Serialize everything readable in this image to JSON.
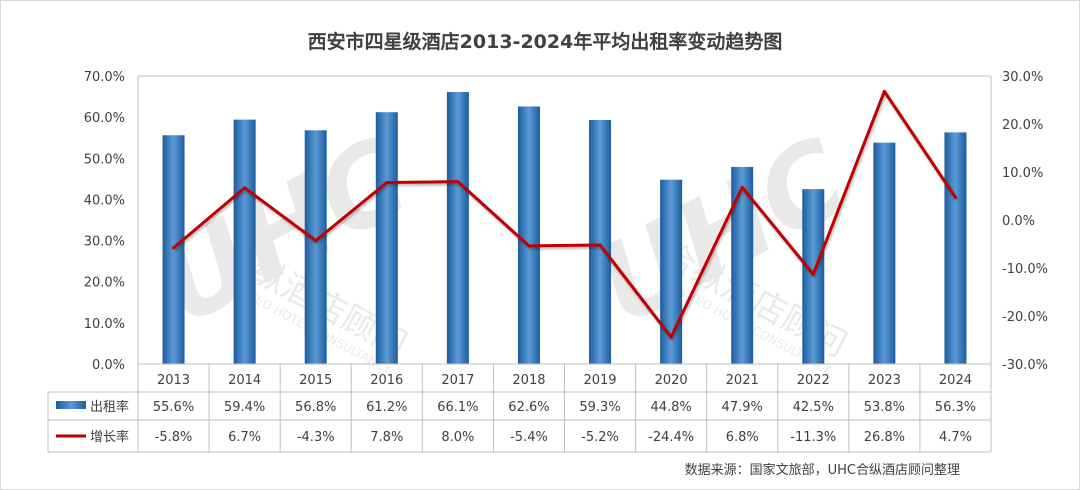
{
  "chart_data": {
    "type": "bar",
    "title": "西安市四星级酒店2013-2024年平均出租率变动趋势图",
    "categories": [
      "2013",
      "2014",
      "2015",
      "2016",
      "2017",
      "2018",
      "2019",
      "2020",
      "2021",
      "2022",
      "2023",
      "2024"
    ],
    "series": [
      {
        "name": "出租率",
        "type": "bar",
        "axis": "left",
        "values": [
          55.6,
          59.4,
          56.8,
          61.2,
          66.1,
          62.6,
          59.3,
          44.8,
          47.9,
          42.5,
          53.8,
          56.3
        ],
        "labels": [
          "55.6%",
          "59.4%",
          "56.8%",
          "61.2%",
          "66.1%",
          "62.6%",
          "59.3%",
          "44.8%",
          "47.9%",
          "42.5%",
          "53.8%",
          "56.3%"
        ],
        "color": "#2E75B6"
      },
      {
        "name": "增长率",
        "type": "line",
        "axis": "right",
        "values": [
          -5.8,
          6.7,
          -4.3,
          7.8,
          8.0,
          -5.4,
          -5.2,
          -24.4,
          6.8,
          -11.3,
          26.8,
          4.7
        ],
        "labels": [
          "-5.8%",
          "6.7%",
          "-4.3%",
          "7.8%",
          "8.0%",
          "-5.4%",
          "-5.2%",
          "-24.4%",
          "6.8%",
          "-11.3%",
          "26.8%",
          "4.7%"
        ],
        "color": "#C00000"
      }
    ],
    "y_left": {
      "range": [
        0,
        70
      ],
      "ticks": [
        0,
        10,
        20,
        30,
        40,
        50,
        60,
        70
      ],
      "tick_labels": [
        "0.0%",
        "10.0%",
        "20.0%",
        "30.0%",
        "40.0%",
        "50.0%",
        "60.0%",
        "70.0%"
      ]
    },
    "y_right": {
      "range": [
        -30,
        30
      ],
      "ticks": [
        -30,
        -20,
        -10,
        0,
        10,
        20,
        30
      ],
      "tick_labels": [
        "-30.0%",
        "-20.0%",
        "-10.0%",
        "0.0%",
        "10.0%",
        "20.0%",
        "30.0%"
      ]
    },
    "grid": false,
    "legend": "data-table",
    "source": "数据来源：国家文旅部，UHC合纵酒店顾问整理",
    "watermark": [
      "合纵酒店顾问",
      "UNITED HOTEL CONSULTANCY"
    ]
  }
}
